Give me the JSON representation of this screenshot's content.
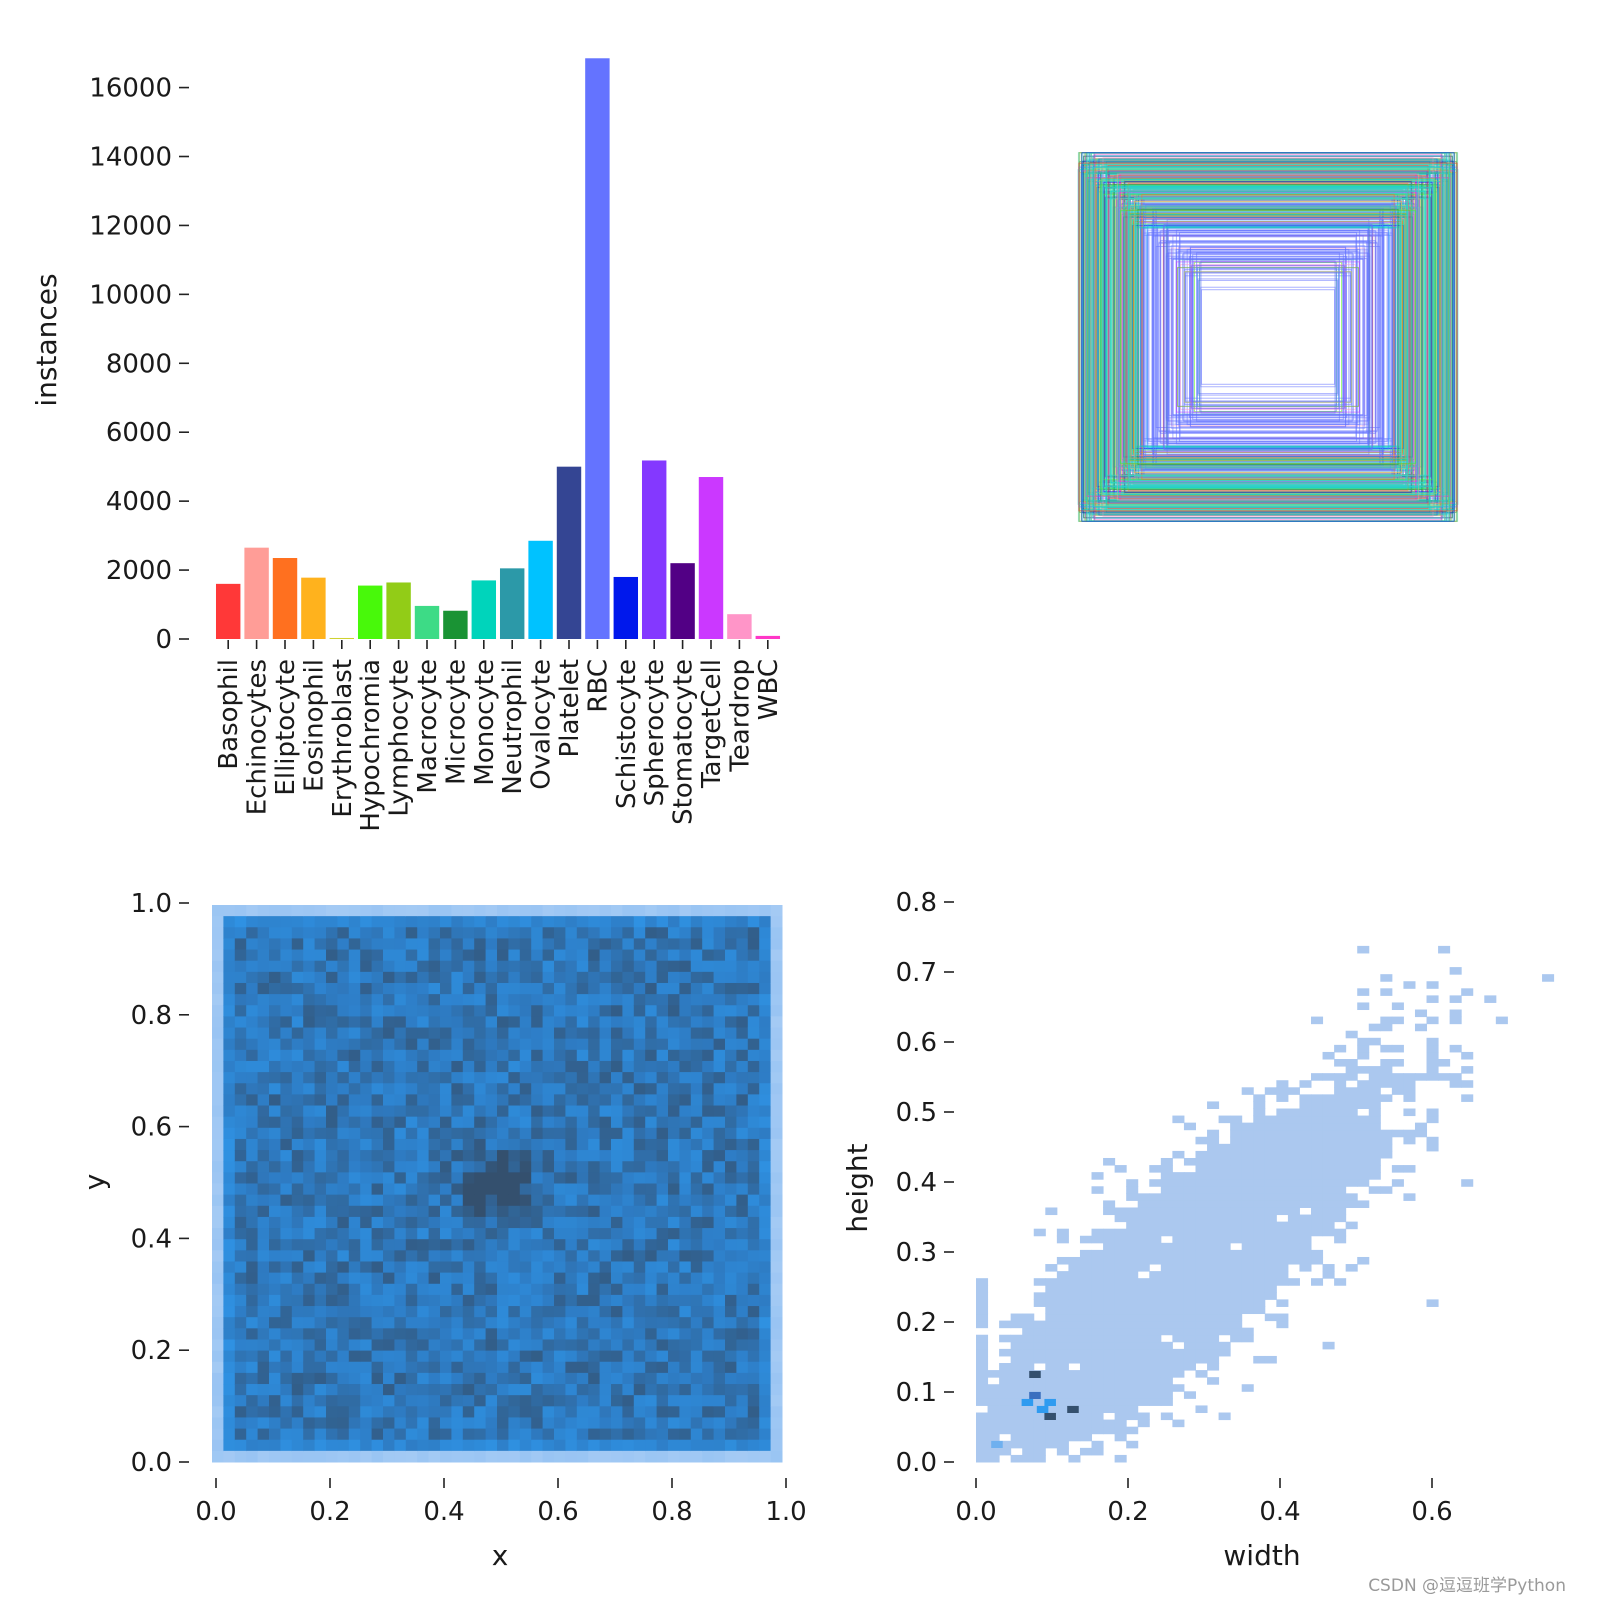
{
  "watermark": "CSDN @逗逗班学Python",
  "chart_data": [
    {
      "id": "labels",
      "type": "bar",
      "ylabel": "instances",
      "ylim": [
        0,
        16800
      ],
      "yticks": [
        0,
        2000,
        4000,
        6000,
        8000,
        10000,
        12000,
        14000,
        16000
      ],
      "categories": [
        "Basophil",
        "Echinocytes",
        "Elliptocyte",
        "Eosinophil",
        "Erythroblast",
        "Hypochromia",
        "Lymphocyte",
        "Macrocyte",
        "Microcyte",
        "Monocyte",
        "Neutrophil",
        "Ovalocyte",
        "Platelet",
        "RBC",
        "Schistocyte",
        "Spherocyte",
        "Stomatocyte",
        "TargetCell",
        "Teardrop",
        "WBC"
      ],
      "values": [
        1600,
        2650,
        2350,
        1780,
        30,
        1550,
        1640,
        960,
        820,
        1700,
        2050,
        2850,
        5000,
        16850,
        1800,
        5180,
        2200,
        4700,
        720,
        90
      ],
      "colors": [
        "#ff3838",
        "#ff9d97",
        "#ff701f",
        "#ffb21d",
        "#cfd231",
        "#48f90a",
        "#92cc17",
        "#3ddb86",
        "#1a9334",
        "#00d4bb",
        "#2c99a8",
        "#00c2ff",
        "#344593",
        "#6473ff",
        "#0018ec",
        "#8438ff",
        "#520085",
        "#cb38ff",
        "#ff95c8",
        "#ff37c7"
      ]
    },
    {
      "id": "boxes",
      "type": "other",
      "description_kind": "overlaid bounding box outlines centered on image"
    },
    {
      "id": "xy",
      "type": "heatmap",
      "xlabel": "x",
      "ylabel": "y",
      "xlim": [
        0,
        1
      ],
      "ylim": [
        0,
        1
      ],
      "xticks": [
        "0.0",
        "0.2",
        "0.4",
        "0.6",
        "0.8",
        "1.0"
      ],
      "yticks": [
        "0.0",
        "0.2",
        "0.4",
        "0.6",
        "0.8",
        "1.0"
      ],
      "bins": 50
    },
    {
      "id": "wh",
      "type": "heatmap",
      "xlabel": "width",
      "ylabel": "height",
      "xlim": [
        0,
        0.75
      ],
      "ylim": [
        0,
        0.8
      ],
      "xticks": [
        "0.0",
        "0.2",
        "0.4",
        "0.6"
      ],
      "yticks": [
        "0.0",
        "0.1",
        "0.2",
        "0.3",
        "0.4",
        "0.5",
        "0.6",
        "0.7",
        "0.8"
      ],
      "hotspots": [
        [
          0.07,
          0.09
        ],
        [
          0.09,
          0.07
        ],
        [
          0.12,
          0.07
        ]
      ]
    }
  ]
}
